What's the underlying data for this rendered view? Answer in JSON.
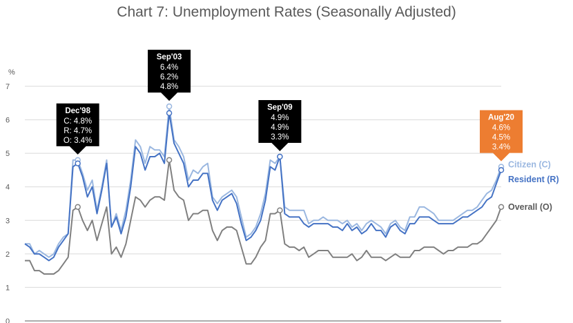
{
  "chart_data": {
    "type": "line",
    "title": "Chart 7: Unemployment Rates (Seasonally Adjusted)",
    "ylabel": "%",
    "ylim": [
      0,
      7
    ],
    "yticks": [
      "0",
      "1",
      "2",
      "3",
      "4",
      "5",
      "6",
      "7"
    ],
    "grid": true,
    "legend_placement": "right, at line ends",
    "colors": {
      "citizen": "#9ab7e0",
      "resident": "#4472c4",
      "overall": "#7f7f7f",
      "callout_dark": "#000000",
      "callout_latest": "#ed7d31",
      "grid": "#d9d9d9"
    },
    "series": [
      {
        "name": "Citizen (C)",
        "values": [
          2.3,
          2.3,
          2.0,
          2.1,
          2.0,
          1.9,
          2.0,
          2.3,
          2.5,
          2.6,
          4.8,
          4.8,
          4.4,
          3.9,
          4.2,
          3.3,
          4.0,
          4.8,
          2.8,
          3.2,
          2.7,
          3.3,
          4.2,
          5.4,
          5.2,
          4.7,
          5.2,
          5.1,
          5.1,
          4.9,
          6.4,
          5.4,
          5.2,
          4.9,
          4.2,
          4.5,
          4.4,
          4.6,
          4.7,
          3.7,
          3.5,
          3.7,
          3.8,
          3.9,
          3.7,
          3.1,
          2.5,
          2.6,
          2.8,
          3.2,
          3.8,
          4.8,
          4.7,
          4.9,
          3.4,
          3.3,
          3.3,
          3.3,
          3.3,
          2.9,
          3.0,
          3.0,
          3.1,
          3.0,
          3.0,
          3.0,
          2.9,
          3.0,
          2.8,
          2.9,
          2.7,
          2.9,
          3.0,
          2.9,
          2.8,
          2.6,
          2.9,
          3.0,
          2.8,
          2.7,
          3.1,
          3.1,
          3.4,
          3.4,
          3.3,
          3.2,
          3.0,
          3.0,
          3.0,
          3.0,
          3.1,
          3.2,
          3.3,
          3.3,
          3.4,
          3.6,
          3.8,
          3.9,
          4.2,
          4.6
        ]
      },
      {
        "name": "Resident (R)",
        "values": [
          2.3,
          2.2,
          2.0,
          2.0,
          1.9,
          1.8,
          1.9,
          2.2,
          2.4,
          2.6,
          4.6,
          4.7,
          4.3,
          3.7,
          4.0,
          3.2,
          3.9,
          4.7,
          2.8,
          3.1,
          2.6,
          3.1,
          4.0,
          5.2,
          5.0,
          4.5,
          4.9,
          4.9,
          5.0,
          4.7,
          6.2,
          5.3,
          5.0,
          4.7,
          4.0,
          4.2,
          4.2,
          4.4,
          4.4,
          3.6,
          3.3,
          3.6,
          3.7,
          3.8,
          3.5,
          2.9,
          2.4,
          2.5,
          2.7,
          3.0,
          3.6,
          4.6,
          4.5,
          4.9,
          3.2,
          3.1,
          3.1,
          3.1,
          2.9,
          2.8,
          2.9,
          2.9,
          2.9,
          2.9,
          2.8,
          2.8,
          2.7,
          2.9,
          2.7,
          2.8,
          2.6,
          2.7,
          2.9,
          2.7,
          2.7,
          2.5,
          2.8,
          2.9,
          2.7,
          2.6,
          2.9,
          2.9,
          3.1,
          3.1,
          3.1,
          3.0,
          2.9,
          2.9,
          2.9,
          2.9,
          3.0,
          3.1,
          3.1,
          3.2,
          3.3,
          3.4,
          3.6,
          3.7,
          4.1,
          4.5
        ]
      },
      {
        "name": "Overall (O)",
        "values": [
          1.8,
          1.8,
          1.5,
          1.5,
          1.4,
          1.4,
          1.4,
          1.5,
          1.7,
          1.9,
          3.3,
          3.4,
          3.0,
          2.7,
          3.0,
          2.4,
          2.9,
          3.4,
          2.0,
          2.2,
          1.9,
          2.3,
          3.0,
          3.7,
          3.6,
          3.4,
          3.6,
          3.7,
          3.7,
          3.6,
          4.8,
          3.9,
          3.7,
          3.6,
          3.0,
          3.2,
          3.2,
          3.3,
          3.3,
          2.7,
          2.4,
          2.7,
          2.8,
          2.8,
          2.7,
          2.2,
          1.7,
          1.7,
          1.9,
          2.2,
          2.4,
          3.2,
          3.2,
          3.3,
          2.3,
          2.2,
          2.2,
          2.1,
          2.2,
          1.9,
          2.0,
          2.1,
          2.1,
          2.1,
          1.9,
          1.9,
          1.9,
          1.9,
          2.0,
          1.8,
          1.9,
          2.1,
          1.9,
          1.9,
          1.9,
          1.8,
          1.9,
          2.0,
          1.9,
          1.9,
          1.9,
          2.1,
          2.1,
          2.2,
          2.2,
          2.2,
          2.1,
          2.0,
          2.1,
          2.1,
          2.2,
          2.2,
          2.2,
          2.3,
          2.3,
          2.4,
          2.6,
          2.8,
          3.0,
          3.4
        ]
      }
    ],
    "annotations": [
      {
        "index": 11,
        "label": "Dec'98",
        "style": "dark",
        "lines": [
          "C: 4.8%",
          "R: 4.7%",
          "O: 3.4%"
        ]
      },
      {
        "index": 30,
        "label": "Sep'03",
        "style": "dark",
        "lines": [
          "6.4%",
          "6.2%",
          "4.8%"
        ]
      },
      {
        "index": 53,
        "label": "Sep'09",
        "style": "dark",
        "lines": [
          "4.9%",
          "4.9%",
          "3.3%"
        ]
      },
      {
        "index": 99,
        "label": "Aug'20",
        "style": "latest",
        "lines": [
          "4.6%",
          "4.5%",
          "3.4%"
        ]
      }
    ]
  }
}
